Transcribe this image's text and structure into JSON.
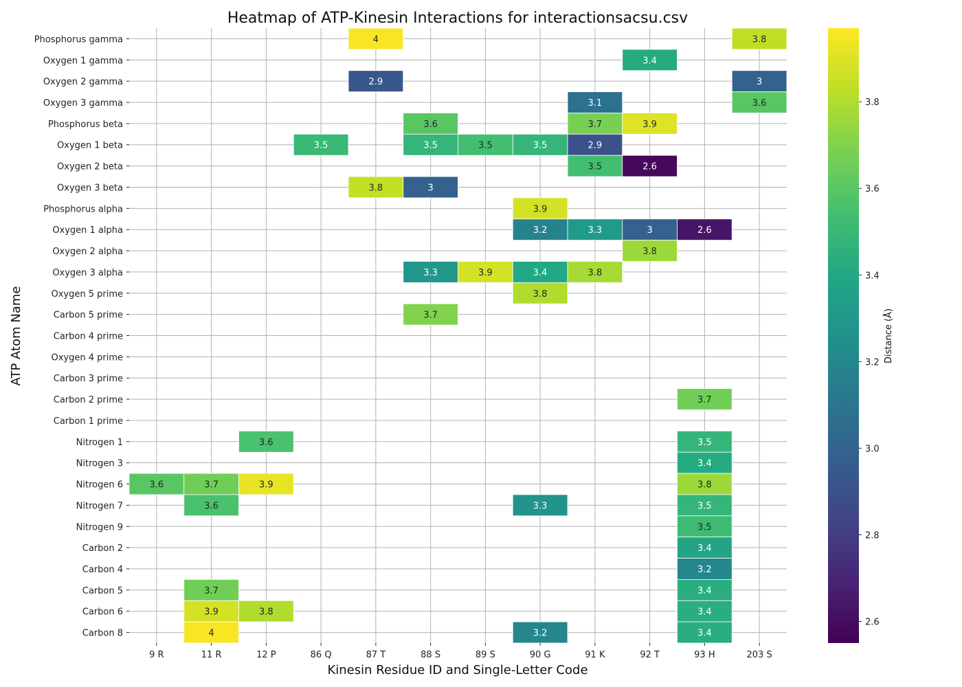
{
  "chart_data": {
    "type": "heatmap",
    "title": "Heatmap of ATP-Kinesin Interactions for interactionsacsu.csv",
    "xlabel": "Kinesin Residue ID and Single-Letter Code",
    "ylabel": "ATP Atom Name",
    "x_categories": [
      "9 R",
      "11 R",
      "12 P",
      "86 Q",
      "87 T",
      "88 S",
      "89 S",
      "90 G",
      "91 K",
      "92 T",
      "93 H",
      "203 S"
    ],
    "y_categories": [
      "Phosphorus gamma",
      "Oxygen 1 gamma",
      "Oxygen 2 gamma",
      "Oxygen 3 gamma",
      "Phosphorus beta",
      "Oxygen 1 beta",
      "Oxygen 2 beta",
      "Oxygen 3 beta",
      "Phosphorus alpha",
      "Oxygen 1 alpha",
      "Oxygen 2 alpha",
      "Oxygen 3 alpha",
      "Oxygen 5 prime",
      "Carbon 5 prime",
      "Carbon 4 prime",
      "Oxygen 4 prime",
      "Carbon 3 prime",
      "Carbon 2 prime",
      "Carbon 1 prime",
      "Nitrogen 1",
      "Nitrogen 3",
      "Nitrogen 6",
      "Nitrogen 7",
      "Nitrogen 9",
      "Carbon 2",
      "Carbon 4",
      "Carbon 5",
      "Carbon 6",
      "Carbon 8"
    ],
    "cells": [
      {
        "row": "Phosphorus gamma",
        "col": "87 T",
        "value": 3.96,
        "label": "4"
      },
      {
        "row": "Phosphorus gamma",
        "col": "203 S",
        "value": 3.83,
        "label": "3.8"
      },
      {
        "row": "Oxygen 1 gamma",
        "col": "92 T",
        "value": 3.42,
        "label": "3.4"
      },
      {
        "row": "Oxygen 2 gamma",
        "col": "87 T",
        "value": 2.94,
        "label": "2.9"
      },
      {
        "row": "Oxygen 2 gamma",
        "col": "203 S",
        "value": 2.99,
        "label": "3"
      },
      {
        "row": "Oxygen 3 gamma",
        "col": "91 K",
        "value": 3.08,
        "label": "3.1"
      },
      {
        "row": "Oxygen 3 gamma",
        "col": "203 S",
        "value": 3.6,
        "label": "3.6"
      },
      {
        "row": "Phosphorus beta",
        "col": "88 S",
        "value": 3.6,
        "label": "3.6"
      },
      {
        "row": "Phosphorus beta",
        "col": "91 K",
        "value": 3.68,
        "label": "3.7"
      },
      {
        "row": "Phosphorus beta",
        "col": "92 T",
        "value": 3.9,
        "label": "3.9"
      },
      {
        "row": "Oxygen 1 beta",
        "col": "86 Q",
        "value": 3.5,
        "label": "3.5"
      },
      {
        "row": "Oxygen 1 beta",
        "col": "88 S",
        "value": 3.48,
        "label": "3.5"
      },
      {
        "row": "Oxygen 1 beta",
        "col": "89 S",
        "value": 3.54,
        "label": "3.5"
      },
      {
        "row": "Oxygen 1 beta",
        "col": "90 G",
        "value": 3.48,
        "label": "3.5"
      },
      {
        "row": "Oxygen 1 beta",
        "col": "91 K",
        "value": 2.9,
        "label": "2.9"
      },
      {
        "row": "Oxygen 2 beta",
        "col": "91 K",
        "value": 3.54,
        "label": "3.5"
      },
      {
        "row": "Oxygen 2 beta",
        "col": "92 T",
        "value": 2.58,
        "label": "2.6"
      },
      {
        "row": "Oxygen 3 beta",
        "col": "87 T",
        "value": 3.84,
        "label": "3.8"
      },
      {
        "row": "Oxygen 3 beta",
        "col": "88 S",
        "value": 2.99,
        "label": "3"
      },
      {
        "row": "Phosphorus alpha",
        "col": "90 G",
        "value": 3.88,
        "label": "3.9"
      },
      {
        "row": "Oxygen 1 alpha",
        "col": "90 G",
        "value": 3.18,
        "label": "3.2"
      },
      {
        "row": "Oxygen 1 alpha",
        "col": "91 K",
        "value": 3.32,
        "label": "3.3"
      },
      {
        "row": "Oxygen 1 alpha",
        "col": "92 T",
        "value": 2.99,
        "label": "3"
      },
      {
        "row": "Oxygen 1 alpha",
        "col": "93 H",
        "value": 2.63,
        "label": "2.6"
      },
      {
        "row": "Oxygen 2 alpha",
        "col": "92 T",
        "value": 3.76,
        "label": "3.8"
      },
      {
        "row": "Oxygen 3 alpha",
        "col": "88 S",
        "value": 3.3,
        "label": "3.3"
      },
      {
        "row": "Oxygen 3 alpha",
        "col": "89 S",
        "value": 3.88,
        "label": "3.9"
      },
      {
        "row": "Oxygen 3 alpha",
        "col": "90 G",
        "value": 3.4,
        "label": "3.4"
      },
      {
        "row": "Oxygen 3 alpha",
        "col": "91 K",
        "value": 3.78,
        "label": "3.8"
      },
      {
        "row": "Oxygen 5 prime",
        "col": "90 G",
        "value": 3.8,
        "label": "3.8"
      },
      {
        "row": "Carbon 5 prime",
        "col": "88 S",
        "value": 3.7,
        "label": "3.7"
      },
      {
        "row": "Carbon 2 prime",
        "col": "93 H",
        "value": 3.66,
        "label": "3.7"
      },
      {
        "row": "Nitrogen 1",
        "col": "12 P",
        "value": 3.56,
        "label": "3.6"
      },
      {
        "row": "Nitrogen 1",
        "col": "93 H",
        "value": 3.48,
        "label": "3.5"
      },
      {
        "row": "Nitrogen 3",
        "col": "93 H",
        "value": 3.42,
        "label": "3.4"
      },
      {
        "row": "Nitrogen 6",
        "col": "9 R",
        "value": 3.6,
        "label": "3.6"
      },
      {
        "row": "Nitrogen 6",
        "col": "11 R",
        "value": 3.66,
        "label": "3.7"
      },
      {
        "row": "Nitrogen 6",
        "col": "12 P",
        "value": 3.92,
        "label": "3.9"
      },
      {
        "row": "Nitrogen 6",
        "col": "93 H",
        "value": 3.76,
        "label": "3.8"
      },
      {
        "row": "Nitrogen 7",
        "col": "11 R",
        "value": 3.56,
        "label": "3.6"
      },
      {
        "row": "Nitrogen 7",
        "col": "90 G",
        "value": 3.28,
        "label": "3.3"
      },
      {
        "row": "Nitrogen 7",
        "col": "93 H",
        "value": 3.48,
        "label": "3.5"
      },
      {
        "row": "Nitrogen 9",
        "col": "93 H",
        "value": 3.52,
        "label": "3.5"
      },
      {
        "row": "Carbon 2",
        "col": "93 H",
        "value": 3.38,
        "label": "3.4"
      },
      {
        "row": "Carbon 4",
        "col": "93 H",
        "value": 3.2,
        "label": "3.2"
      },
      {
        "row": "Carbon 5",
        "col": "11 R",
        "value": 3.66,
        "label": "3.7"
      },
      {
        "row": "Carbon 5",
        "col": "93 H",
        "value": 3.44,
        "label": "3.4"
      },
      {
        "row": "Carbon 6",
        "col": "11 R",
        "value": 3.88,
        "label": "3.9"
      },
      {
        "row": "Carbon 6",
        "col": "12 P",
        "value": 3.8,
        "label": "3.8"
      },
      {
        "row": "Carbon 6",
        "col": "93 H",
        "value": 3.44,
        "label": "3.4"
      },
      {
        "row": "Carbon 8",
        "col": "11 R",
        "value": 3.96,
        "label": "4"
      },
      {
        "row": "Carbon 8",
        "col": "90 G",
        "value": 3.2,
        "label": "3.2"
      },
      {
        "row": "Carbon 8",
        "col": "93 H",
        "value": 3.44,
        "label": "3.4"
      }
    ],
    "colorbar": {
      "label": "Distance (Å)",
      "colormap": "viridis",
      "range": [
        2.55,
        3.97
      ],
      "ticks": [
        "2.6",
        "2.8",
        "3.0",
        "3.2",
        "3.4",
        "3.6",
        "3.8"
      ]
    },
    "grid": true,
    "legend": "colorbar right"
  }
}
